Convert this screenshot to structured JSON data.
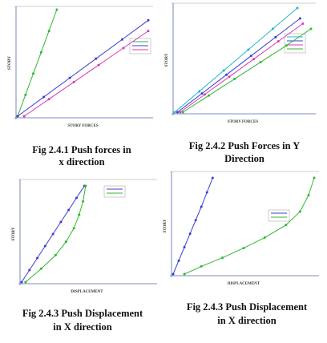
{
  "chart_data": [
    {
      "type": "line",
      "title": "Fig 2.4.1 Push forces in x direction",
      "x_label": "STORY FORCES",
      "y_label": "STORY",
      "xlim": [
        0,
        10
      ],
      "ylim": [
        0,
        10
      ],
      "series": [
        {
          "color": "#2eb82e",
          "x": [
            0,
            0.6,
            1.2,
            1.8,
            2.4,
            3.0
          ],
          "values": [
            0,
            2,
            4,
            6,
            8,
            10
          ]
        },
        {
          "color": "#3b3bd6",
          "x": [
            0,
            2,
            4,
            6,
            8,
            10
          ],
          "values": [
            0,
            1.8,
            3.6,
            5.4,
            7.2,
            9
          ]
        },
        {
          "color": "#d63bb5",
          "x": [
            0.5,
            2.4,
            4.3,
            6.2,
            8.1,
            10
          ],
          "values": [
            0,
            1.6,
            3.2,
            4.8,
            6.4,
            8
          ]
        }
      ]
    },
    {
      "type": "line",
      "title": "Fig 2.4.2 Push Forces in Y Direction",
      "x_label": "STORY FORCES",
      "y_label": "STORY",
      "xlim": [
        0,
        10
      ],
      "ylim": [
        0,
        10
      ],
      "series": [
        {
          "color": "#20b8c8",
          "x": [
            0,
            1.8,
            3.6,
            5.4,
            7.2,
            9
          ],
          "values": [
            0,
            2,
            4,
            6,
            8,
            10
          ]
        },
        {
          "color": "#3b3bd6",
          "x": [
            0.2,
            2,
            3.8,
            5.6,
            7.4,
            9.2
          ],
          "values": [
            0,
            1.8,
            3.6,
            5.4,
            7.2,
            9
          ]
        },
        {
          "color": "#d63bb5",
          "x": [
            0.4,
            2.2,
            4.0,
            5.8,
            7.6,
            9.4
          ],
          "values": [
            0,
            1.7,
            3.4,
            5.1,
            6.8,
            8.5
          ]
        },
        {
          "color": "#2eb82e",
          "x": [
            0.6,
            2.5,
            4.4,
            6.3,
            8.2,
            10
          ],
          "values": [
            0,
            1.6,
            3.2,
            4.8,
            6.4,
            8
          ]
        }
      ]
    },
    {
      "type": "line",
      "title": "Fig 2.4.3 Push Displacement in X direction",
      "x_label": "DISPLACEMENT",
      "y_label": "STORY",
      "xlim": [
        0,
        10
      ],
      "ylim": [
        0,
        10
      ],
      "series": [
        {
          "color": "#3b3bd6",
          "x": [
            0,
            0.6,
            1.2,
            1.8,
            2.4,
            3.0,
            3.6,
            4.2,
            4.8
          ],
          "values": [
            0,
            1.25,
            2.5,
            3.75,
            5,
            6.25,
            7.5,
            8.75,
            10
          ]
        },
        {
          "color": "#2eb82e",
          "x": [
            0.3,
            1.5,
            2.6,
            3.4,
            4.0,
            4.4,
            4.7,
            4.9
          ],
          "values": [
            0,
            1.4,
            2.8,
            4.2,
            5.6,
            7,
            8.4,
            10
          ]
        }
      ]
    },
    {
      "type": "line",
      "title": "Fig 2.4.3 Push Displacement in X direction",
      "x_label": "DISPLACEMENT",
      "y_label": "STORY",
      "xlim": [
        0,
        10
      ],
      "ylim": [
        0,
        10
      ],
      "series": [
        {
          "color": "#3b3bd6",
          "x": [
            0,
            0.4,
            0.8,
            1.2,
            1.6,
            2.0,
            2.4,
            2.8
          ],
          "values": [
            0,
            1.4,
            2.8,
            4.2,
            5.6,
            7,
            8.5,
            10
          ]
        },
        {
          "color": "#2eb82e",
          "x": [
            0.8,
            2,
            3.5,
            5,
            6.5,
            8,
            9,
            9.6,
            10
          ],
          "values": [
            0,
            0.8,
            1.7,
            2.7,
            3.8,
            5.1,
            6.5,
            8.2,
            10
          ]
        }
      ]
    }
  ]
}
